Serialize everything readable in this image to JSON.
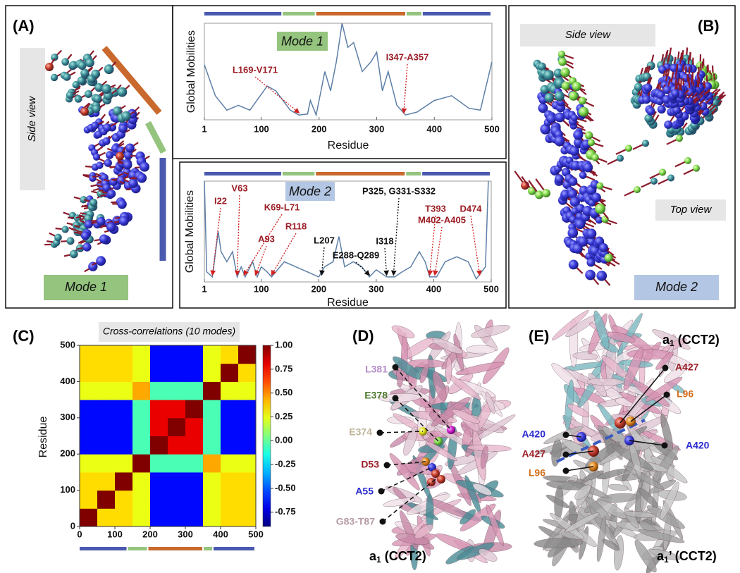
{
  "panels": {
    "A": {
      "label": "(A)",
      "view": "Side view",
      "mode": "Mode 1"
    },
    "B": {
      "label": "(B)",
      "side_view": "Side view",
      "top_view": "Top view",
      "mode": "Mode 2"
    },
    "C": {
      "label": "(C)"
    },
    "D": {
      "label": "(D)",
      "chain": "a",
      "chain_sub": "1",
      "chain_rest": " (CCT2)",
      "residues": [
        {
          "text": "L381",
          "color": "#b48cc8"
        },
        {
          "text": "E378",
          "color": "#4f7a2e"
        },
        {
          "text": "E374",
          "color": "#bcb59a"
        },
        {
          "text": "D53",
          "color": "#9b1c24"
        },
        {
          "text": "A55",
          "color": "#2a2ad0"
        },
        {
          "text": "G83-T87",
          "color": "#b49aa0"
        }
      ]
    },
    "E": {
      "label": "(E)",
      "top_chain": "a",
      "top_sub": "1",
      "top_rest": " (CCT2)",
      "bottom_chain": "a",
      "bottom_sub": "1",
      "bottom_rest": "’ (CCT2)",
      "residues": [
        {
          "text": "A427",
          "color": "#9b1c24"
        },
        {
          "text": "L96",
          "color": "#d2701e"
        },
        {
          "text": "A420",
          "color": "#2a2ad0"
        },
        {
          "text": "A420",
          "color": "#2a2ad0"
        },
        {
          "text": "A427",
          "color": "#9b1c24"
        },
        {
          "text": "L96",
          "color": "#d2701e"
        }
      ]
    }
  },
  "chart_data": [
    {
      "type": "line",
      "title": "Mode 1",
      "title_color": "#94c47d",
      "xlabel": "Residue",
      "ylabel": "Global Mobilities",
      "color": "#5d7fa6",
      "xlim": [
        1,
        500
      ],
      "ylim": [
        0,
        1
      ],
      "xticks": [
        1,
        100,
        200,
        300,
        400,
        500
      ],
      "x": [
        1,
        20,
        40,
        60,
        80,
        110,
        125,
        150,
        165,
        180,
        185,
        195,
        210,
        220,
        230,
        240,
        250,
        260,
        275,
        290,
        300,
        310,
        320,
        335,
        350,
        370,
        400,
        430,
        460,
        480,
        500
      ],
      "values": [
        0.57,
        0.25,
        0.1,
        0.15,
        0.1,
        0.35,
        0.3,
        0.1,
        0.05,
        0.06,
        0.2,
        0.05,
        0.5,
        0.3,
        0.6,
        1.0,
        0.75,
        0.8,
        0.5,
        0.6,
        0.7,
        0.3,
        0.5,
        0.15,
        0.05,
        0.08,
        0.2,
        0.25,
        0.12,
        0.1,
        0.6
      ],
      "domains": [
        {
          "start": 1,
          "end": 137,
          "color": "#4a5ab0"
        },
        {
          "start": 137,
          "end": 195,
          "color": "#94c47d"
        },
        {
          "start": 195,
          "end": 352,
          "color": "#c9692e"
        },
        {
          "start": 352,
          "end": 380,
          "color": "#94c47d"
        },
        {
          "start": 380,
          "end": 500,
          "color": "#4a5ab0"
        }
      ],
      "annotations": [
        {
          "text": "L169-V171",
          "x": 165,
          "color": "#9b1c24"
        },
        {
          "text": "I347-A357",
          "x": 347,
          "color": "#9b1c24"
        }
      ]
    },
    {
      "type": "line",
      "title": "Mode 2",
      "title_color": "#b3c6e3",
      "xlabel": "Residue",
      "ylabel": "Global Mobilities",
      "color": "#5d7fa6",
      "xlim": [
        1,
        500
      ],
      "ylim": [
        0,
        1
      ],
      "xticks": [
        1,
        100,
        200,
        300,
        400,
        500
      ],
      "x": [
        1,
        5,
        15,
        25,
        30,
        40,
        50,
        58,
        65,
        72,
        85,
        93,
        100,
        110,
        118,
        140,
        160,
        180,
        200,
        210,
        225,
        235,
        245,
        260,
        275,
        288,
        300,
        318,
        325,
        332,
        345,
        360,
        375,
        385,
        393,
        405,
        420,
        440,
        460,
        474,
        490,
        495
      ],
      "values": [
        1.0,
        0.1,
        0.05,
        0.5,
        0.3,
        0.2,
        0.3,
        0.05,
        0.15,
        0.05,
        0.2,
        0.05,
        0.15,
        0.1,
        0.05,
        0.2,
        0.15,
        0.1,
        0.05,
        0.15,
        0.2,
        0.45,
        0.15,
        0.2,
        0.15,
        0.05,
        0.12,
        0.05,
        0.05,
        0.05,
        0.1,
        0.15,
        0.3,
        0.2,
        0.05,
        0.05,
        0.2,
        0.25,
        0.2,
        0.03,
        0.15,
        1.0
      ],
      "domains": [
        {
          "start": 1,
          "end": 137,
          "color": "#4a5ab0"
        },
        {
          "start": 137,
          "end": 195,
          "color": "#94c47d"
        },
        {
          "start": 195,
          "end": 352,
          "color": "#c9692e"
        },
        {
          "start": 352,
          "end": 380,
          "color": "#94c47d"
        },
        {
          "start": 380,
          "end": 500,
          "color": "#4a5ab0"
        }
      ],
      "annotations": [
        {
          "text": "I22",
          "x": 15,
          "color": "#9b1c24"
        },
        {
          "text": "V63",
          "x": 58,
          "color": "#9b1c24"
        },
        {
          "text": "K69-L71",
          "x": 70,
          "color": "#9b1c24"
        },
        {
          "text": "A93",
          "x": 90,
          "color": "#9b1c24"
        },
        {
          "text": "R118",
          "x": 118,
          "color": "#9b1c24"
        },
        {
          "text": "L207",
          "x": 205,
          "color": "#111111"
        },
        {
          "text": "E288-Q289",
          "x": 288,
          "color": "#111111"
        },
        {
          "text": "P325, G331-S332",
          "x": 330,
          "color": "#111111"
        },
        {
          "text": "I318",
          "x": 318,
          "color": "#111111"
        },
        {
          "text": "T393",
          "x": 393,
          "color": "#9b1c24"
        },
        {
          "text": "M402-A405",
          "x": 402,
          "color": "#9b1c24"
        },
        {
          "text": "D474",
          "x": 480,
          "color": "#9b1c24"
        }
      ]
    },
    {
      "type": "heatmap",
      "title": "Cross-correlations (10 modes)",
      "ylabel": "Residue",
      "colormap": "jet",
      "xlim": [
        0,
        500
      ],
      "ylim": [
        0,
        500
      ],
      "xticks": [
        0,
        100,
        200,
        300,
        400,
        500
      ],
      "yticks": [
        0,
        100,
        200,
        300,
        400,
        500
      ],
      "clim": [
        -0.9,
        1.0
      ],
      "cticks": [
        {
          "value": 1,
          "label": "1.00"
        },
        {
          "value": 0.75,
          "label": "0.75"
        },
        {
          "value": 0.5,
          "label": "0.50"
        },
        {
          "value": 0.25,
          "label": "0.25"
        },
        {
          "value": 0,
          "label": "0.00"
        },
        {
          "value": -0.25,
          "label": "-0.25"
        },
        {
          "value": -0.5,
          "label": "-0.50"
        },
        {
          "value": -0.75,
          "label": "-0.75"
        }
      ],
      "values": [
        [
          1.0,
          0.35,
          0.35,
          0.25,
          -0.65,
          -0.65,
          -0.65,
          0.25,
          0.35,
          0.35
        ],
        [
          0.35,
          1.0,
          0.35,
          0.25,
          -0.65,
          -0.65,
          -0.65,
          0.25,
          0.35,
          0.35
        ],
        [
          0.35,
          0.35,
          1.0,
          0.25,
          -0.65,
          -0.65,
          -0.65,
          0.25,
          0.35,
          0.35
        ],
        [
          0.25,
          0.25,
          0.25,
          1.0,
          -0.05,
          -0.05,
          -0.05,
          0.45,
          0.25,
          0.25
        ],
        [
          -0.65,
          -0.65,
          -0.65,
          -0.05,
          1.0,
          0.8,
          0.8,
          -0.05,
          -0.65,
          -0.65
        ],
        [
          -0.65,
          -0.65,
          -0.65,
          -0.05,
          0.8,
          1.0,
          0.8,
          -0.05,
          -0.65,
          -0.65
        ],
        [
          -0.65,
          -0.65,
          -0.65,
          -0.05,
          0.8,
          0.8,
          1.0,
          -0.05,
          -0.65,
          -0.65
        ],
        [
          0.25,
          0.25,
          0.25,
          0.45,
          -0.05,
          -0.05,
          -0.05,
          1.0,
          0.25,
          0.25
        ],
        [
          0.35,
          0.35,
          0.35,
          0.25,
          -0.65,
          -0.65,
          -0.65,
          0.25,
          1.0,
          0.35
        ],
        [
          0.35,
          0.35,
          0.35,
          0.25,
          -0.65,
          -0.65,
          -0.65,
          0.25,
          0.35,
          1.0
        ]
      ],
      "domains": [
        {
          "start": 0,
          "end": 137,
          "color": "#4a5ab0"
        },
        {
          "start": 137,
          "end": 195,
          "color": "#94c47d"
        },
        {
          "start": 195,
          "end": 352,
          "color": "#c9692e"
        },
        {
          "start": 352,
          "end": 380,
          "color": "#94c47d"
        },
        {
          "start": 380,
          "end": 500,
          "color": "#4a5ab0"
        }
      ]
    }
  ]
}
